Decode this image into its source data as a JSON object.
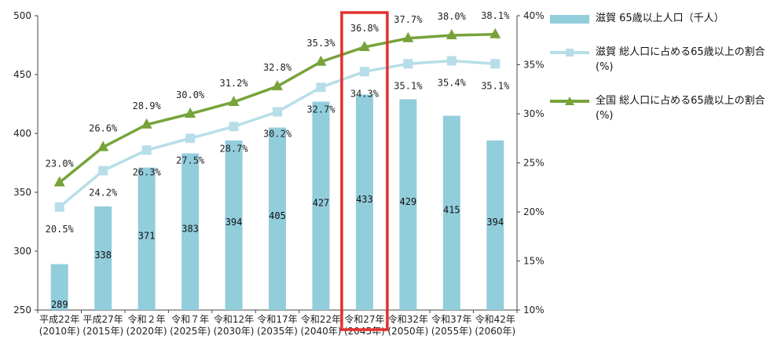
{
  "chart_data": {
    "type": "bar+line",
    "categories": [
      [
        "平成22年",
        "(2010年)"
      ],
      [
        "平成27年",
        "(2015年)"
      ],
      [
        "令和２年",
        "(2020年)"
      ],
      [
        "令和７年",
        "(2025年)"
      ],
      [
        "令和12年",
        "(2030年)"
      ],
      [
        "令和17年",
        "(2035年)"
      ],
      [
        "令和22年",
        "(2040年)"
      ],
      [
        "令和27年",
        "(2045年)"
      ],
      [
        "令和32年",
        "(2050年)"
      ],
      [
        "令和37年",
        "(2055年)"
      ],
      [
        "令和42年",
        "(2060年)"
      ]
    ],
    "left_axis": {
      "ylim": [
        250,
        500
      ],
      "ticks": [
        "250",
        "300",
        "350",
        "400",
        "450",
        "500"
      ]
    },
    "right_axis": {
      "ylim": [
        10,
        40
      ],
      "ticks": [
        "10%",
        "15%",
        "20%",
        "25%",
        "30%",
        "35%",
        "40%"
      ]
    },
    "series": [
      {
        "name": "滋賀 65歳以上人口（千人）",
        "type": "bar",
        "axis": "left",
        "color": "#92cddc",
        "values": [
          289,
          338,
          371,
          383,
          394,
          405,
          427,
          433,
          429,
          415,
          394
        ],
        "labels": [
          "289",
          "338",
          "371",
          "383",
          "394",
          "405",
          "427",
          "433",
          "429",
          "415",
          "394"
        ]
      },
      {
        "name": "滋賀 総人口に占める65歳以上の割合(%)",
        "type": "line",
        "axis": "right",
        "color": "#b7dee8",
        "marker": "square",
        "values": [
          20.5,
          24.2,
          26.3,
          27.5,
          28.7,
          30.2,
          32.7,
          34.3,
          35.1,
          35.4,
          35.1
        ],
        "labels": [
          "20.5%",
          "24.2%",
          "26.3%",
          "27.5%",
          "28.7%",
          "30.2%",
          "32.7%",
          "34.3%",
          "35.1%",
          "35.4%",
          "35.1%"
        ]
      },
      {
        "name": "全国 総人口に占める65歳以上の割合(%)",
        "type": "line",
        "axis": "right",
        "color": "#77a33a",
        "marker": "triangle",
        "values": [
          23.0,
          26.6,
          28.9,
          30.0,
          31.2,
          32.8,
          35.3,
          36.8,
          37.7,
          38.0,
          38.1
        ],
        "labels": [
          "23.0%",
          "26.6%",
          "28.9%",
          "30.0%",
          "31.2%",
          "32.8%",
          "35.3%",
          "36.8%",
          "37.7%",
          "38.0%",
          "38.1%"
        ]
      }
    ],
    "highlight": {
      "category_index": 7,
      "color": "#e53030"
    },
    "legend": {
      "placement": "right"
    }
  },
  "legend": {
    "items": [
      {
        "text": "滋賀 65歳以上人口（千人）",
        "color": "#92cddc",
        "kind": "bar"
      },
      {
        "text": "滋賀 総人口に占める65歳以上の割合(%)",
        "color": "#b7dee8",
        "kind": "line-square"
      },
      {
        "text": "全国 総人口に占める65歳以上の割合(%)",
        "color": "#77a33a",
        "kind": "line-triangle"
      }
    ]
  }
}
